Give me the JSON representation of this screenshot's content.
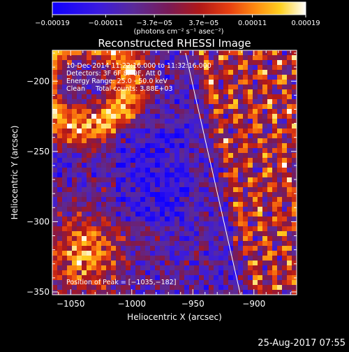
{
  "chart_data": {
    "type": "heatmap",
    "title": "Reconstructed RHESSI Image",
    "xlabel": "Heliocentric X (arcsec)",
    "ylabel": "Heliocentric Y (arcsec)",
    "xlim": [
      -1065,
      -865
    ],
    "ylim": [
      -352,
      -178
    ],
    "x_ticks": [
      -1050,
      -1000,
      -950,
      -900
    ],
    "x_tick_labels": [
      "−1050",
      "−1000",
      "−950",
      "−900"
    ],
    "y_ticks": [
      -200,
      -250,
      -300,
      -350
    ],
    "y_tick_labels": [
      "−200",
      "−250",
      "−300",
      "−350"
    ],
    "colorbar": {
      "min": -0.00019,
      "max": 0.00019,
      "ticks": [
        -0.00019,
        -0.00011,
        -3.7e-05,
        3.7e-05,
        0.00011,
        0.00019
      ],
      "tick_labels": [
        "−0.00019",
        "−0.00011",
        "−3.7e−05",
        "3.7e−05",
        "0.00011",
        "0.00019"
      ],
      "units_label": "(photons cm⁻² s⁻¹ asec⁻²)",
      "colormap": "blue-purple-red-orange-yellow-white"
    },
    "annotations": [
      "10-Dec-2014 11:22:16.000 to 11:32:16.000",
      "Detectors: 3F 6F 8F 9F, Att 0",
      "Energy Range: 25.0 - 50.0 keV",
      "Clean     Total counts: 3.88E+03"
    ],
    "peak_label": "Position of Peak = [−1035,−182]",
    "limb_line": [
      [
        -956,
        -180
      ],
      [
        -911,
        -352
      ]
    ],
    "grid": false,
    "legend": "none"
  },
  "footer": {
    "timestamp": "25-Aug-2017 07:55"
  },
  "colors": {
    "background": "#000000",
    "foreground": "#ffffff"
  }
}
